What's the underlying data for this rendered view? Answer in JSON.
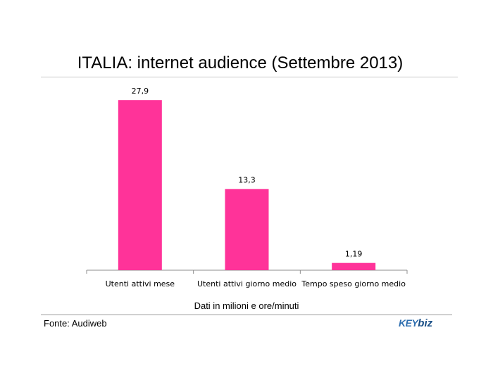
{
  "chart_data": {
    "type": "bar",
    "title": "ITALIA: internet audience (Settembre 2013)",
    "categories": [
      "Utenti attivi mese",
      "Utenti attivi giorno medio",
      "Tempo speso giorno medio"
    ],
    "values": [
      27.9,
      13.3,
      1.19
    ],
    "value_labels": [
      "27,9",
      "13,3",
      "1,19"
    ],
    "ylim": [
      0,
      30
    ],
    "grid": false,
    "legend": "none",
    "bar_color": "#ff3399"
  },
  "note": "Dati in milioni e ore/minuti",
  "source": "Fonte: Audiweb",
  "logo": {
    "text_left": "KEY",
    "text_right": "biz"
  }
}
